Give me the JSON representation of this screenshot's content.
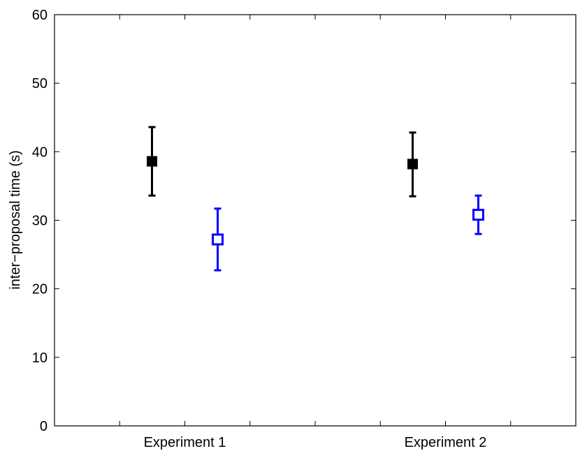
{
  "chart_data": {
    "type": "scatter",
    "title": "",
    "xlabel": "",
    "ylabel": "inter−proposal time (s)",
    "ylim": [
      0,
      60
    ],
    "yticks": [
      0,
      10,
      20,
      30,
      40,
      50,
      60
    ],
    "categories": [
      "Experiment 1",
      "Experiment 2"
    ],
    "grid": false,
    "legend": "none",
    "series": [
      {
        "color": "#000000",
        "marker": "filled-square",
        "points": [
          {
            "category": "Experiment 1",
            "mean": 38.6,
            "low": 33.6,
            "high": 43.6
          },
          {
            "category": "Experiment 2",
            "mean": 38.2,
            "low": 33.5,
            "high": 42.8
          }
        ]
      },
      {
        "color": "#0000ff",
        "marker": "open-square",
        "points": [
          {
            "category": "Experiment 1",
            "mean": 27.2,
            "low": 22.7,
            "high": 31.7
          },
          {
            "category": "Experiment 2",
            "mean": 30.8,
            "low": 28.0,
            "high": 33.6
          }
        ]
      }
    ]
  }
}
